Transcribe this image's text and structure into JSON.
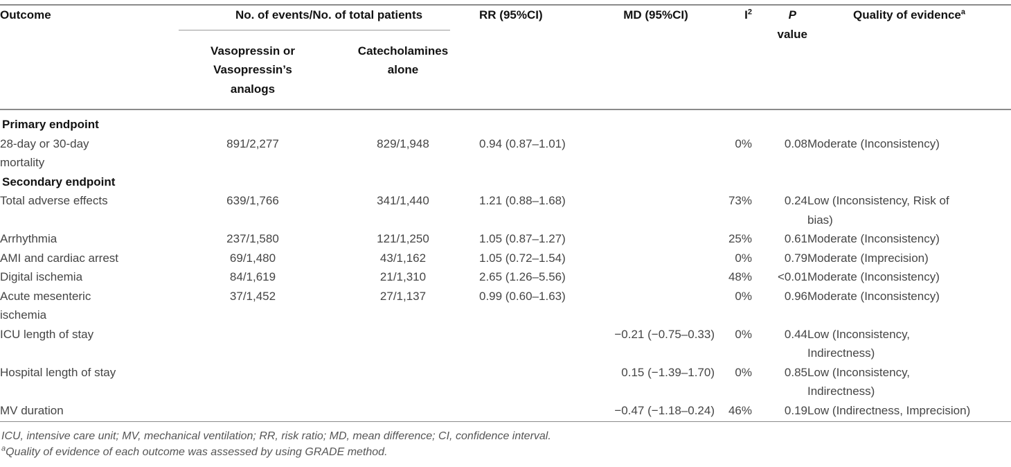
{
  "table": {
    "header": {
      "outcome": "Outcome",
      "events_group": "No. of events/No. of total patients",
      "col_vasopressin": "Vasopressin or\nVasopressin’s\nanalogs",
      "col_catecholamines": "Catecholamines\nalone",
      "rr": "RR (95%CI)",
      "md": "MD (95%CI)",
      "i2_base": "I",
      "i2_sup": "2",
      "p_line1": "P",
      "p_line2": "value",
      "quality_base": "Quality of evidence",
      "quality_sup": "a"
    },
    "rows": [
      {
        "section": true,
        "outcome": "Primary endpoint",
        "vaso": "",
        "cate": "",
        "rr": "",
        "md": "",
        "i2": "",
        "p": "",
        "quality": ""
      },
      {
        "section": false,
        "outcome": "28-day or 30-day\nmortality",
        "vaso": "891/2,277",
        "cate": "829/1,948",
        "rr": "0.94 (0.87–1.01)",
        "md": "",
        "i2": "0%",
        "p": "0.08",
        "quality": "Moderate (Inconsistency)"
      },
      {
        "section": true,
        "outcome": "Secondary endpoint",
        "vaso": "",
        "cate": "",
        "rr": "",
        "md": "",
        "i2": "",
        "p": "",
        "quality": ""
      },
      {
        "section": false,
        "outcome": "Total adverse effects",
        "vaso": "639/1,766",
        "cate": "341/1,440",
        "rr": "1.21 (0.88–1.68)",
        "md": "",
        "i2": "73%",
        "p": "0.24",
        "quality": "Low (Inconsistency, Risk of\nbias)"
      },
      {
        "section": false,
        "outcome": "Arrhythmia",
        "vaso": "237/1,580",
        "cate": "121/1,250",
        "rr": "1.05 (0.87–1.27)",
        "md": "",
        "i2": "25%",
        "p": "0.61",
        "quality": "Moderate (Inconsistency)"
      },
      {
        "section": false,
        "outcome": "AMI and cardiac arrest",
        "vaso": "69/1,480",
        "cate": "43/1,162",
        "rr": "1.05 (0.72–1.54)",
        "md": "",
        "i2": "0%",
        "p": "0.79",
        "quality": "Moderate (Imprecision)"
      },
      {
        "section": false,
        "outcome": "Digital ischemia",
        "vaso": "84/1,619",
        "cate": "21/1,310",
        "rr": "2.65 (1.26–5.56)",
        "md": "",
        "i2": "48%",
        "p": "<0.01",
        "quality": "Moderate (Inconsistency)"
      },
      {
        "section": false,
        "outcome": "Acute mesenteric\nischemia",
        "vaso": "37/1,452",
        "cate": "27/1,137",
        "rr": "0.99 (0.60–1.63)",
        "md": "",
        "i2": "0%",
        "p": "0.96",
        "quality": "Moderate (Inconsistency)"
      },
      {
        "section": false,
        "outcome": "ICU length of stay",
        "vaso": "",
        "cate": "",
        "rr": "",
        "md": "−0.21 (−0.75–0.33)",
        "i2": "0%",
        "p": "0.44",
        "quality": "Low (Inconsistency,\nIndirectness)"
      },
      {
        "section": false,
        "outcome": "Hospital length of stay",
        "vaso": "",
        "cate": "",
        "rr": "",
        "md": "0.15 (−1.39–1.70)",
        "i2": "0%",
        "p": "0.85",
        "quality": "Low (Inconsistency,\nIndirectness)"
      },
      {
        "section": false,
        "outcome": "MV duration",
        "vaso": "",
        "cate": "",
        "rr": "",
        "md": "−0.47 (−1.18–0.24)",
        "i2": "46%",
        "p": "0.19",
        "quality": "Low (Indirectness, Imprecision)"
      }
    ]
  },
  "footnotes": {
    "abbreviations": "ICU, intensive care unit; MV, mechanical ventilation; RR, risk ratio; MD, mean difference; CI, confidence interval.",
    "grade_sup": "a",
    "grade": "Quality of evidence of each outcome was assessed by using GRADE method."
  },
  "colors": {
    "header_text": "#121212",
    "body_text": "#454545",
    "rule": "#8a8a8a"
  }
}
